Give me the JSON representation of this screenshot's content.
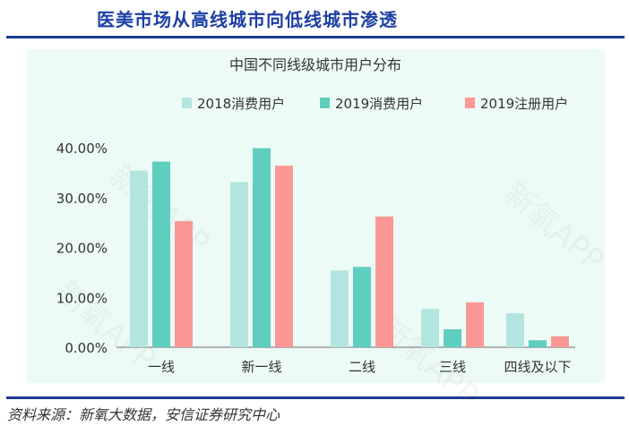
{
  "header": {
    "title": "医美市场从高线城市向低线城市渗透"
  },
  "footer": {
    "source": "资料来源：新氧大数据，安信证券研究中心"
  },
  "watermark": "新氧APP",
  "chart_data": {
    "type": "bar",
    "title": "中国不同线级城市用户分布",
    "categories": [
      "一线",
      "新一线",
      "二线",
      "三线",
      "四线及以下"
    ],
    "series": [
      {
        "name": "2018消费用户",
        "color": "#b2e5de",
        "values": [
          35.4,
          33.1,
          15.4,
          7.7,
          6.8
        ]
      },
      {
        "name": "2019消费用户",
        "color": "#5ecebe",
        "values": [
          37.2,
          39.9,
          16.1,
          3.6,
          1.4
        ]
      },
      {
        "name": "2019注册用户",
        "color": "#fb9896",
        "values": [
          25.3,
          36.4,
          26.2,
          9.0,
          2.2
        ]
      }
    ],
    "yticks": [
      "0.00%",
      "10.00%",
      "20.00%",
      "30.00%",
      "40.00%"
    ],
    "ylim": [
      0,
      40
    ],
    "legend": "top-right",
    "grid": false,
    "background": "#edfbf6"
  }
}
